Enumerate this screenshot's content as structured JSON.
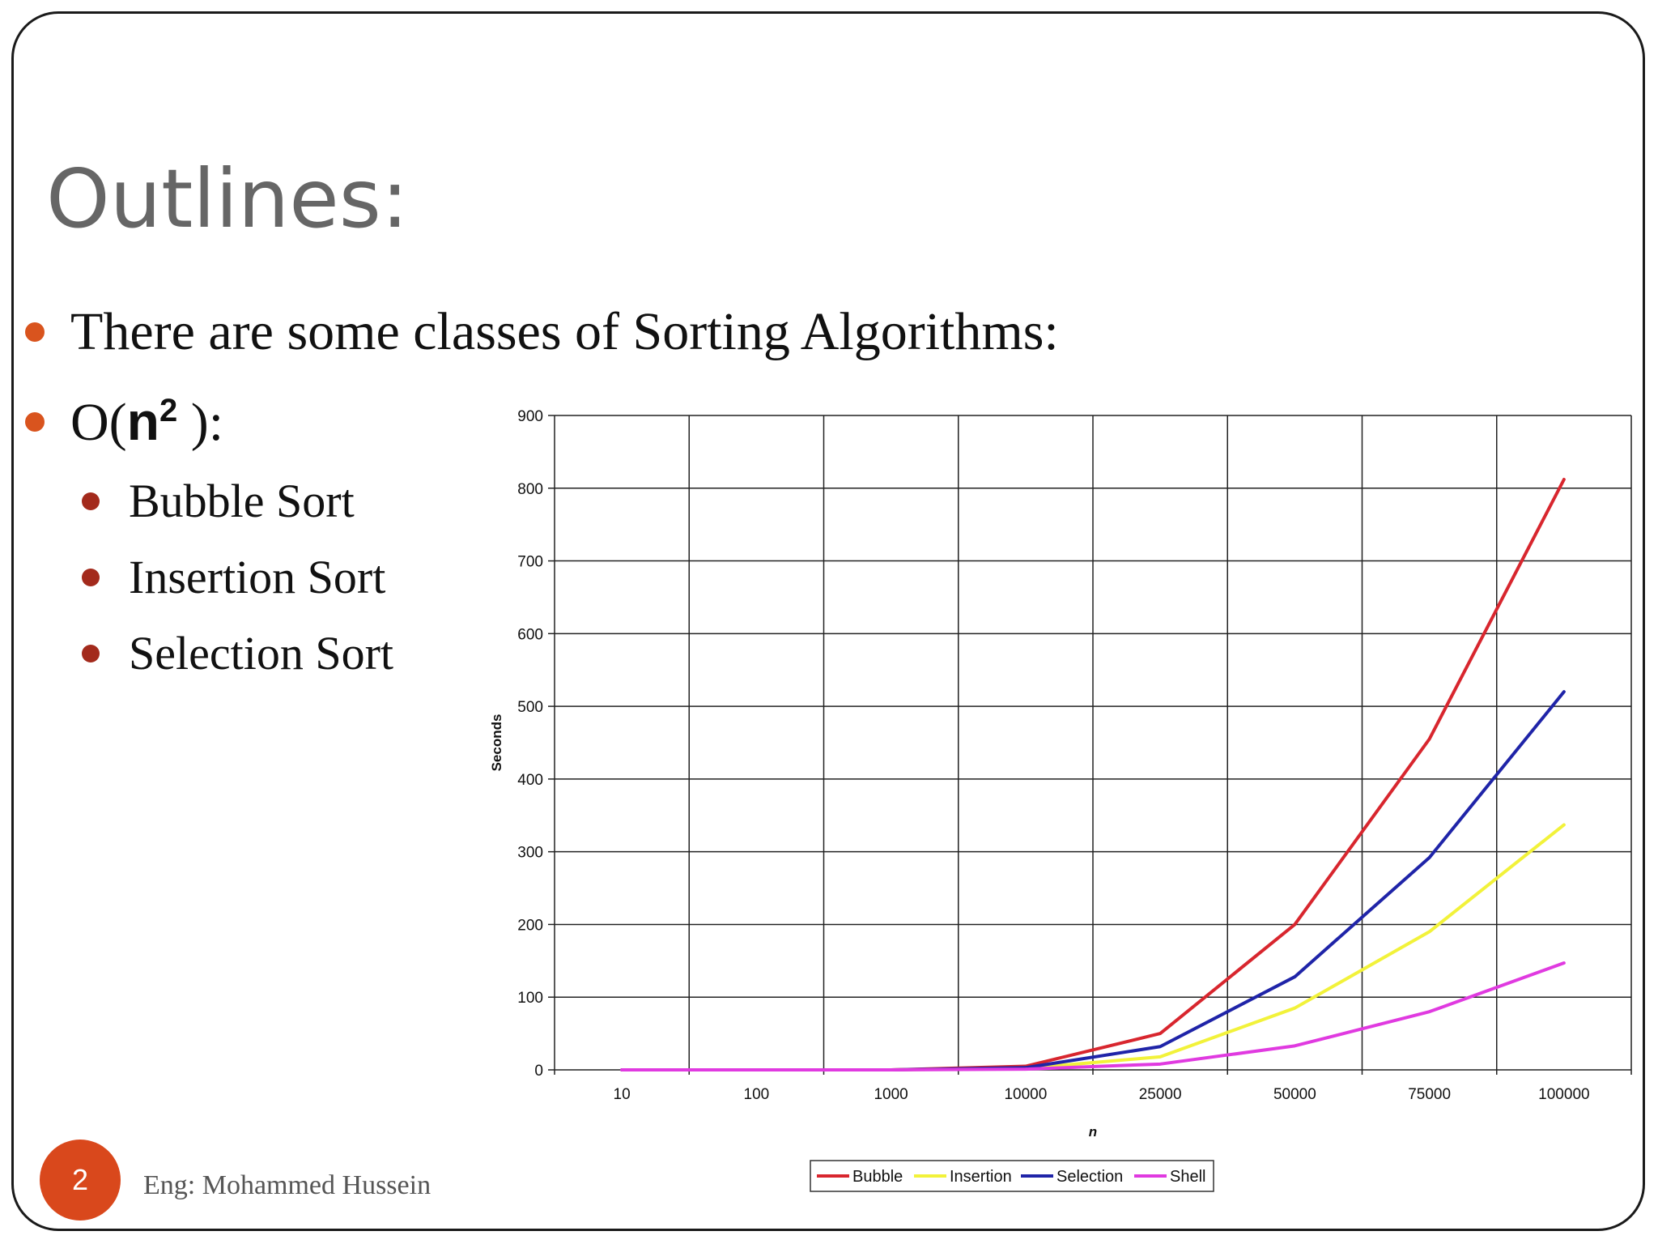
{
  "slide": {
    "title": "Outlines:",
    "bullets": {
      "intro": "There are some classes of Sorting Algorithms:",
      "order_prefix": "O(",
      "order_n": "n",
      "order_exp": "2",
      "order_suffix": " ):"
    },
    "sub_bullets": [
      "Bubble Sort",
      "Insertion Sort",
      "Selection Sort"
    ],
    "page_number": "2",
    "footer": "Eng: Mohammed Hussein",
    "colors": {
      "accent": "#d9481c",
      "sub_bullet": "#a32a1c",
      "title": "#666666"
    }
  },
  "chart_data": {
    "type": "line",
    "categories": [
      "10",
      "100",
      "1000",
      "10000",
      "25000",
      "50000",
      "75000",
      "100000"
    ],
    "series": [
      {
        "name": "Bubble",
        "color": "#d8262e",
        "values": [
          0,
          0,
          0,
          5,
          50,
          200,
          455,
          812
        ]
      },
      {
        "name": "Insertion",
        "color": "#f2f23a",
        "values": [
          0,
          0,
          0,
          2,
          18,
          85,
          190,
          337
        ]
      },
      {
        "name": "Selection",
        "color": "#1f24a8",
        "values": [
          0,
          0,
          0,
          3,
          32,
          128,
          292,
          520
        ]
      },
      {
        "name": "Shell",
        "color": "#e03ae0",
        "values": [
          0,
          0,
          0,
          1,
          8,
          33,
          80,
          147
        ]
      }
    ],
    "xlabel": "n",
    "ylabel": "Seconds",
    "ylim": [
      0,
      900
    ],
    "yticks": [
      0,
      100,
      200,
      300,
      400,
      500,
      600,
      700,
      800,
      900
    ],
    "grid": true,
    "legend_position": "bottom"
  }
}
